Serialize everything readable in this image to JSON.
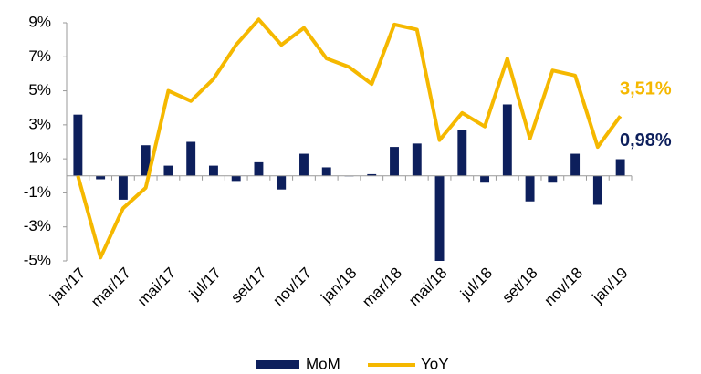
{
  "chart_data": {
    "type": "bar",
    "categories": [
      "jan/17",
      null,
      "mar/17",
      null,
      "mai/17",
      null,
      "jul/17",
      null,
      "set/17",
      null,
      "nov/17",
      null,
      "jan/18",
      null,
      "mar/18",
      null,
      "mai/18",
      null,
      "jul/18",
      null,
      "set/18",
      null,
      "nov/18",
      null,
      "jan/19"
    ],
    "series": [
      {
        "name": "MoM",
        "type": "bar",
        "color": "#0d1f5c",
        "values": [
          3.6,
          -0.2,
          -1.4,
          1.8,
          0.6,
          2.0,
          0.6,
          -0.3,
          0.8,
          -0.8,
          1.3,
          0.5,
          0.0,
          0.1,
          1.7,
          1.9,
          -5.0,
          2.7,
          -0.4,
          4.2,
          -1.5,
          -0.4,
          1.3,
          -1.7,
          0.98
        ],
        "value_labels": [
          null,
          null,
          null,
          null,
          null,
          null,
          null,
          null,
          null,
          null,
          null,
          null,
          null,
          null,
          null,
          null,
          null,
          null,
          null,
          null,
          null,
          null,
          null,
          null,
          "0,98%"
        ]
      },
      {
        "name": "YoY",
        "type": "line",
        "color": "#f5b800",
        "values": [
          0.0,
          -4.8,
          -1.9,
          -0.7,
          5.0,
          4.4,
          5.7,
          7.7,
          9.2,
          7.7,
          8.7,
          6.9,
          6.4,
          5.4,
          8.9,
          8.6,
          2.1,
          3.7,
          2.9,
          6.9,
          2.2,
          6.2,
          5.9,
          1.7,
          3.51
        ],
        "value_labels": [
          null,
          null,
          null,
          null,
          null,
          null,
          null,
          null,
          null,
          null,
          null,
          null,
          null,
          null,
          null,
          null,
          null,
          null,
          null,
          null,
          null,
          null,
          null,
          null,
          "3,51%"
        ]
      }
    ],
    "ylim": [
      -5,
      9
    ],
    "yticks": [
      {
        "value": -5,
        "label": "-5%"
      },
      {
        "value": -3,
        "label": "-3%"
      },
      {
        "value": -1,
        "label": "-1%"
      },
      {
        "value": 1,
        "label": "1%"
      },
      {
        "value": 3,
        "label": "3%"
      },
      {
        "value": 5,
        "label": "5%"
      },
      {
        "value": 7,
        "label": "7%"
      },
      {
        "value": 9,
        "label": "9%"
      }
    ],
    "legend": "bottom"
  }
}
